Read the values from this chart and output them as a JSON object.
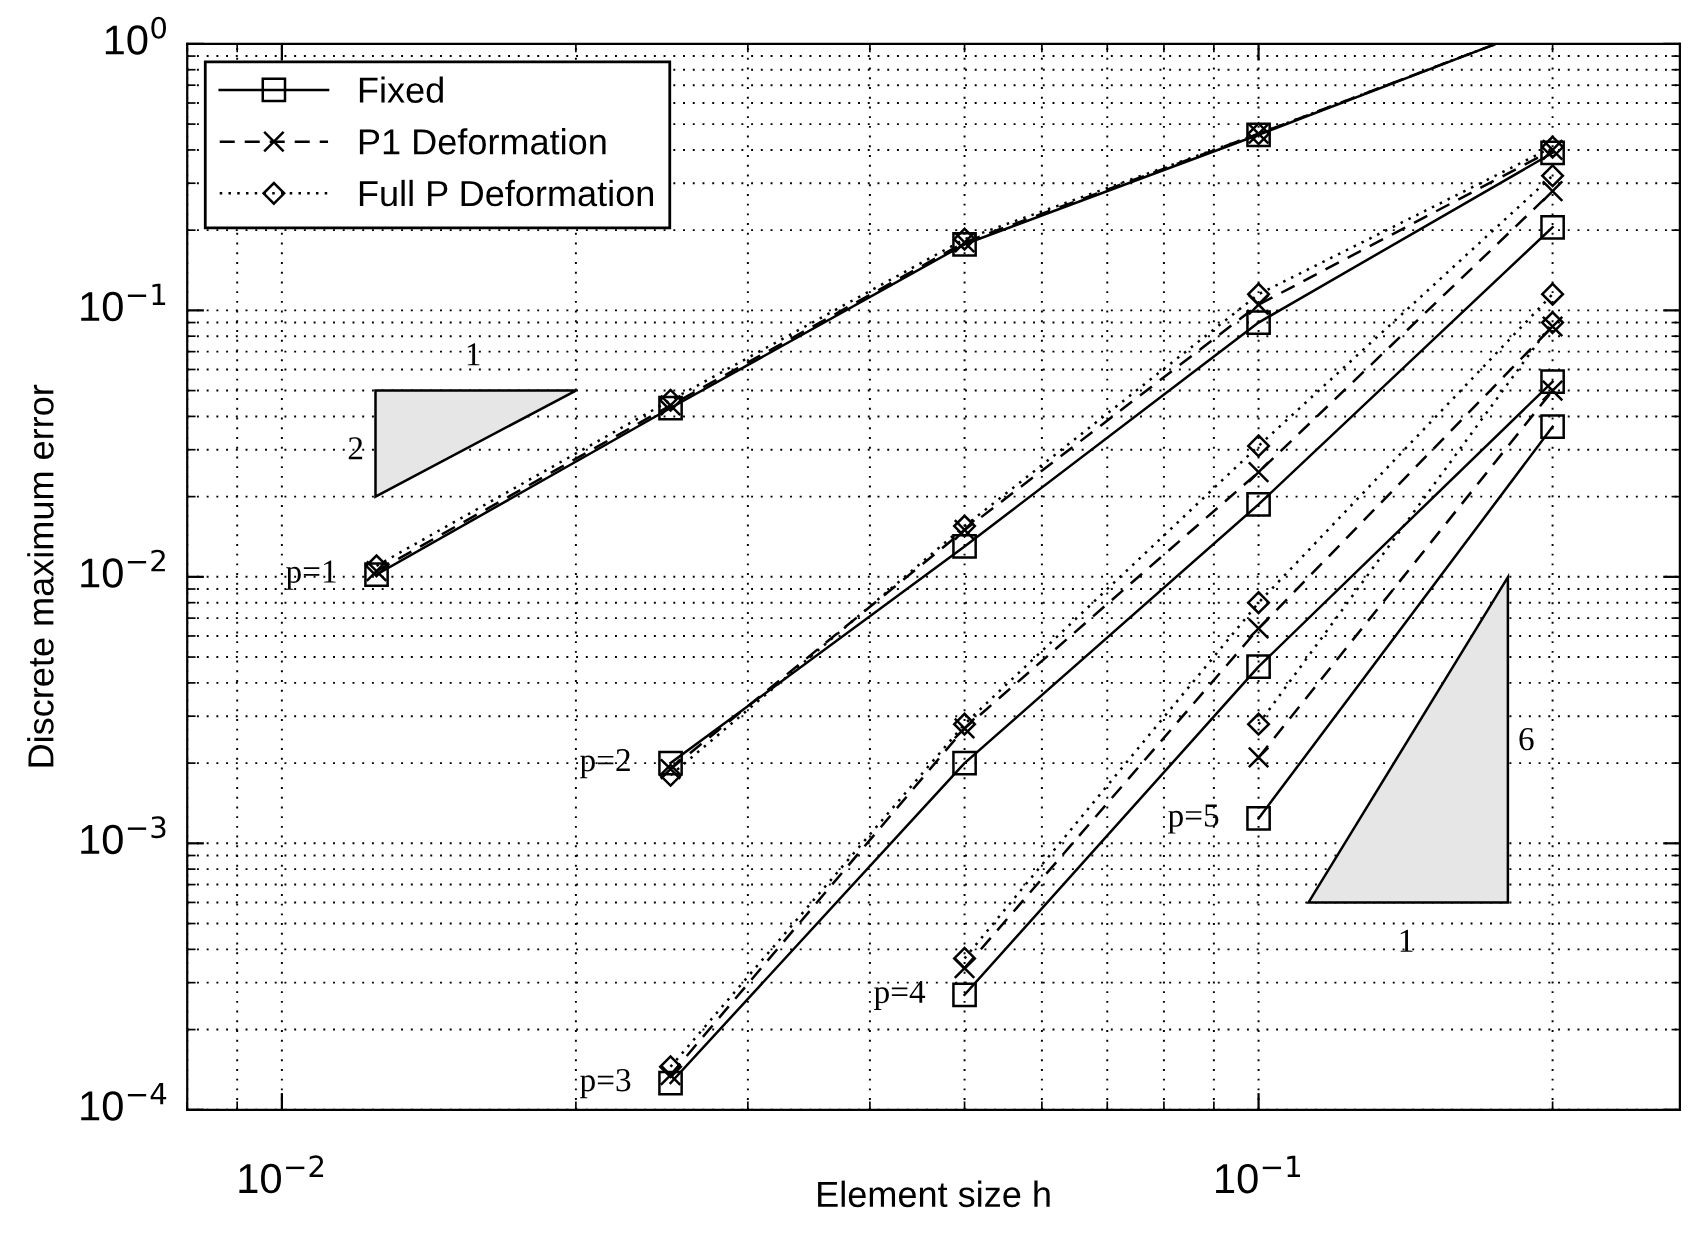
{
  "chart_data": {
    "type": "line",
    "xlabel": "Element size h",
    "ylabel": "Discrete maximum error",
    "log": "xy",
    "xlim": [
      0.008,
      0.27
    ],
    "ylim": [
      0.0001,
      1
    ],
    "xticks": [
      {
        "value": 0.01,
        "label": "10$^{−2}$"
      },
      {
        "value": 0.1,
        "label": "10$^{−1}$"
      }
    ],
    "yticks": [
      {
        "value": 0.0001,
        "label": "10$^{−4}$"
      },
      {
        "value": 0.001,
        "label": "10$^{−3}$"
      },
      {
        "value": 0.01,
        "label": "10$^{−2}$"
      },
      {
        "value": 0.1,
        "label": "10$^{−1}$"
      },
      {
        "value": 1,
        "label": "10$^{0}$"
      }
    ],
    "grid": true,
    "legend": "top left",
    "series": [
      {
        "name": "Fixed",
        "color": "#000000",
        "line_style": "solid",
        "marker": "square",
        "x": [
          0.0125,
          0.025,
          0.05,
          0.1,
          0.175
        ],
        "values": [
          0.0102,
          0.043,
          0.177,
          0.456,
          1
        ]
      },
      {
        "name": "P1 Deformation",
        "color": "#000000",
        "line_style": "dashed",
        "marker": "cross",
        "x": [
          0.0125,
          0.025,
          0.05,
          0.1,
          0.175
        ],
        "values": [
          0.0105,
          0.044,
          0.18,
          0.46,
          1
        ]
      },
      {
        "name": "Full P Deformation",
        "color": "#000000",
        "line_style": "dotted",
        "marker": "diamond",
        "x": [
          0.0125,
          0.025,
          0.05,
          0.1,
          0.175
        ],
        "values": [
          0.011,
          0.046,
          0.185,
          0.46,
          1
        ]
      },
      {
        "color": "#000000",
        "line_style": "solid",
        "marker": "square",
        "x": [
          0.025,
          0.05,
          0.1,
          0.2
        ],
        "values": [
          0.002,
          0.013,
          0.09,
          0.39
        ]
      },
      {
        "color": "#000000",
        "line_style": "dashed",
        "marker": "cross",
        "x": [
          0.025,
          0.05,
          0.1,
          0.2
        ],
        "values": [
          0.0019,
          0.015,
          0.105,
          0.4
        ]
      },
      {
        "color": "#000000",
        "line_style": "dotted",
        "marker": "diamond",
        "x": [
          0.025,
          0.05,
          0.1,
          0.2
        ],
        "values": [
          0.0018,
          0.0155,
          0.115,
          0.41
        ]
      },
      {
        "color": "#000000",
        "line_style": "solid",
        "marker": "square",
        "x": [
          0.025,
          0.05,
          0.1,
          0.2
        ],
        "values": [
          0.000126,
          0.002,
          0.0187,
          0.205
        ]
      },
      {
        "color": "#000000",
        "line_style": "dashed",
        "marker": "cross",
        "x": [
          0.025,
          0.05,
          0.1,
          0.2
        ],
        "values": [
          0.000135,
          0.0027,
          0.0247,
          0.28
        ]
      },
      {
        "color": "#000000",
        "line_style": "dotted",
        "marker": "diamond",
        "x": [
          0.025,
          0.05,
          0.1,
          0.2
        ],
        "values": [
          0.000145,
          0.0028,
          0.031,
          0.32
        ]
      },
      {
        "color": "#000000",
        "line_style": "solid",
        "marker": "square",
        "x": [
          0.05,
          0.1,
          0.2
        ],
        "values": [
          0.00027,
          0.0046,
          0.054
        ]
      },
      {
        "color": "#000000",
        "line_style": "dashed",
        "marker": "cross",
        "x": [
          0.05,
          0.1,
          0.2
        ],
        "values": [
          0.00034,
          0.0064,
          0.087
        ]
      },
      {
        "color": "#000000",
        "line_style": "dotted",
        "marker": "diamond",
        "x": [
          0.05,
          0.1,
          0.2
        ],
        "values": [
          0.00037,
          0.008,
          0.115
        ]
      },
      {
        "color": "#000000",
        "line_style": "solid",
        "marker": "square",
        "x": [
          0.1,
          0.2
        ],
        "values": [
          0.00124,
          0.0366
        ]
      },
      {
        "color": "#000000",
        "line_style": "dashed",
        "marker": "cross",
        "x": [
          0.1,
          0.2
        ],
        "values": [
          0.0021,
          0.05
        ]
      },
      {
        "color": "#000000",
        "line_style": "dotted",
        "marker": "diamond",
        "x": [
          0.1,
          0.2
        ],
        "values": [
          0.0028,
          0.09
        ]
      }
    ],
    "annotations": [
      "p=1",
      "p=2",
      "p=3",
      "p=4",
      "p=5",
      "1",
      "2",
      "6",
      "1"
    ]
  }
}
